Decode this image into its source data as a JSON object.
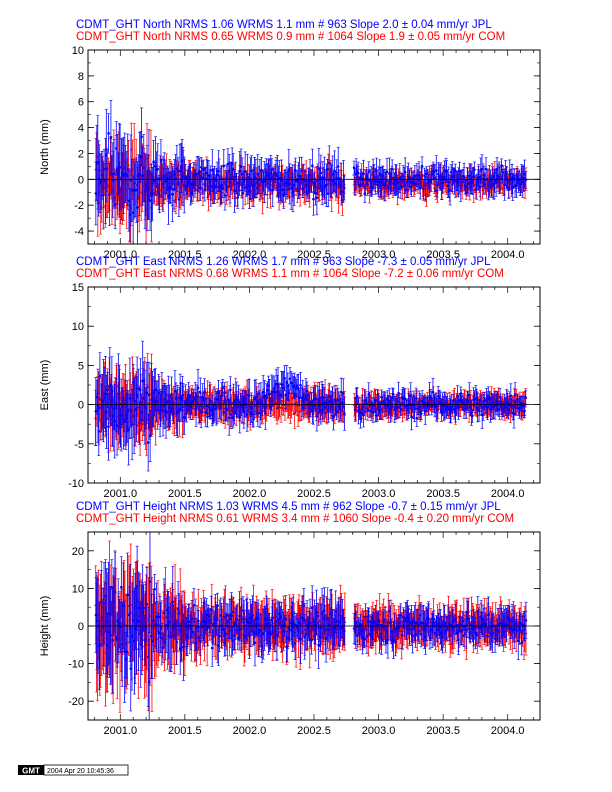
{
  "chart_data": [
    {
      "type": "scatter",
      "component": "North",
      "ylabel": "North (mm)",
      "ylim": [
        -5,
        10
      ],
      "yticks": [
        "-4",
        "-2",
        "0",
        "2",
        "4",
        "6",
        "8",
        "10"
      ],
      "xlim": [
        2000.75,
        2004.25
      ],
      "xticks": [
        "2001.0",
        "2001.5",
        "2002.0",
        "2002.5",
        "2003.0",
        "2003.5",
        "2004.0"
      ],
      "gap": [
        2002.74,
        2002.81
      ],
      "series": [
        {
          "label": "CDMT_GHT North NRMS 1.06 WRMS  1.1 mm # 963 Slope    2.0 ±  0.04 mm/yr JPL",
          "color": "#0000ff",
          "spread": 1.1,
          "err": 1.1,
          "count": 963
        },
        {
          "label": "CDMT_GHT North NRMS 0.65 WRMS  0.9 mm # 1064 Slope    1.9 ±  0.05 mm/yr COM",
          "color": "#ff0000",
          "spread": 0.9,
          "err": 0.9,
          "count": 1064
        }
      ]
    },
    {
      "type": "scatter",
      "component": "East",
      "ylabel": "East (mm)",
      "ylim": [
        -10,
        15
      ],
      "yticks": [
        "-10",
        "-5",
        "0",
        "5",
        "10",
        "15"
      ],
      "xlim": [
        2000.75,
        2004.25
      ],
      "xticks": [
        "2001.0",
        "2001.5",
        "2002.0",
        "2002.5",
        "2003.0",
        "2003.5",
        "2004.0"
      ],
      "gap": [
        2002.74,
        2002.81
      ],
      "series": [
        {
          "label": "CDMT_GHT East NRMS 1.26 WRMS  1.7 mm # 963 Slope   -7.3 ±  0.05 mm/yr JPL",
          "color": "#0000ff",
          "spread": 1.7,
          "err": 1.6,
          "count": 963
        },
        {
          "label": "CDMT_GHT East NRMS 0.68 WRMS  1.1 mm # 1064 Slope   -7.2 ±  0.06 mm/yr COM",
          "color": "#ff0000",
          "spread": 1.1,
          "err": 1.5,
          "count": 1064
        }
      ]
    },
    {
      "type": "scatter",
      "component": "Height",
      "ylabel": "Height (mm)",
      "ylim": [
        -25,
        25
      ],
      "yticks": [
        "-20",
        "-10",
        "0",
        "10",
        "20"
      ],
      "xlim": [
        2000.75,
        2004.25
      ],
      "xticks": [
        "2001.0",
        "2001.5",
        "2002.0",
        "2002.5",
        "2003.0",
        "2003.5",
        "2004.0"
      ],
      "gap": [
        2002.74,
        2002.81
      ],
      "series": [
        {
          "label": "CDMT_GHT Height NRMS 1.03 WRMS  4.5 mm # 962 Slope   -0.7 ±  0.15 mm/yr JPL",
          "color": "#0000ff",
          "spread": 4.5,
          "err": 4.5,
          "count": 962
        },
        {
          "label": "CDMT_GHT Height NRMS 0.61 WRMS  3.4 mm # 1060 Slope   -0.4 ±  0.20 mm/yr COM",
          "color": "#ff0000",
          "spread": 3.4,
          "err": 5.5,
          "count": 1060
        }
      ]
    }
  ],
  "footer": {
    "logo": "GMT",
    "timestamp": "2004 Apr 20 10:45:36"
  }
}
